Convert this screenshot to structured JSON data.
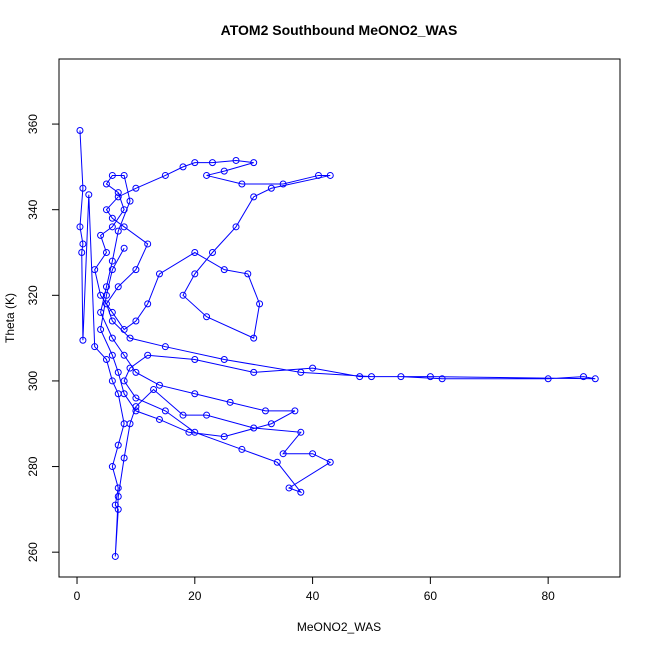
{
  "chart_data": {
    "type": "line",
    "title": "ATOM2 Southbound MeONO2_WAS",
    "x_label": "MeONO2_WAS",
    "y_label": "Theta (K)",
    "xlim": [
      -3.06,
      92.2
    ],
    "ylim": [
      254.2,
      375.2
    ],
    "xticks": [
      0,
      20,
      40,
      60,
      80
    ],
    "yticks": [
      260,
      280,
      300,
      320,
      340,
      360
    ],
    "x": [
      0.5,
      1,
      0.5,
      1,
      0.8,
      1,
      2,
      3,
      5,
      6,
      7,
      8,
      7,
      6,
      7,
      6.5,
      7,
      6.5,
      7,
      8,
      9,
      10,
      13,
      18,
      22,
      30,
      38,
      35,
      40,
      43,
      36,
      38,
      34,
      28,
      20,
      15,
      10,
      8,
      9,
      12,
      20,
      30,
      40,
      48,
      55,
      62,
      80,
      86,
      88,
      60,
      50,
      38,
      25,
      15,
      9,
      6,
      5,
      7,
      10,
      12,
      8,
      6,
      5,
      7,
      10,
      15,
      18,
      20,
      23,
      27,
      30,
      25,
      22,
      28,
      35,
      41,
      43,
      33,
      30,
      27,
      23,
      20,
      18,
      22,
      30,
      31,
      29,
      25,
      20,
      14,
      12,
      10,
      8,
      6,
      4,
      3,
      5,
      4,
      6,
      8,
      7,
      5,
      6,
      8,
      9,
      7,
      6,
      5,
      4,
      6,
      8,
      10,
      14,
      20,
      26,
      32,
      37,
      33,
      25,
      19,
      14,
      10,
      8,
      7,
      6,
      4,
      5,
      6,
      8
    ],
    "series": [
      {
        "name": "MeONO2_WAS",
        "color": "#0000ff",
        "values": [
          358.5,
          345,
          336,
          332,
          330,
          309.5,
          343.5,
          308,
          305,
          300,
          297,
          290,
          285,
          280,
          275,
          271,
          270,
          259,
          273,
          282,
          290,
          294,
          298,
          292,
          292,
          289,
          288,
          283,
          283,
          281,
          275,
          274,
          281,
          284,
          288,
          293,
          296,
          300,
          303,
          306,
          305,
          302,
          303,
          301,
          301,
          300.5,
          300.5,
          301,
          300.5,
          301,
          301,
          302,
          305,
          308,
          310,
          314,
          318,
          322,
          326,
          332,
          336,
          338,
          340,
          343,
          345,
          348,
          350,
          351,
          351,
          351.5,
          351,
          349,
          348,
          346,
          346,
          348,
          348,
          345,
          343,
          336,
          330,
          325,
          320,
          315,
          310,
          318,
          325,
          326,
          330,
          325,
          318,
          314,
          312,
          316,
          320,
          326,
          330,
          334,
          336,
          340,
          344,
          346,
          348,
          348,
          342,
          335,
          328,
          322,
          316,
          310,
          306,
          302,
          299,
          297,
          295,
          293,
          293,
          290,
          287,
          288,
          291,
          293,
          297,
          302,
          306,
          312,
          320,
          326,
          331
        ]
      }
    ]
  }
}
